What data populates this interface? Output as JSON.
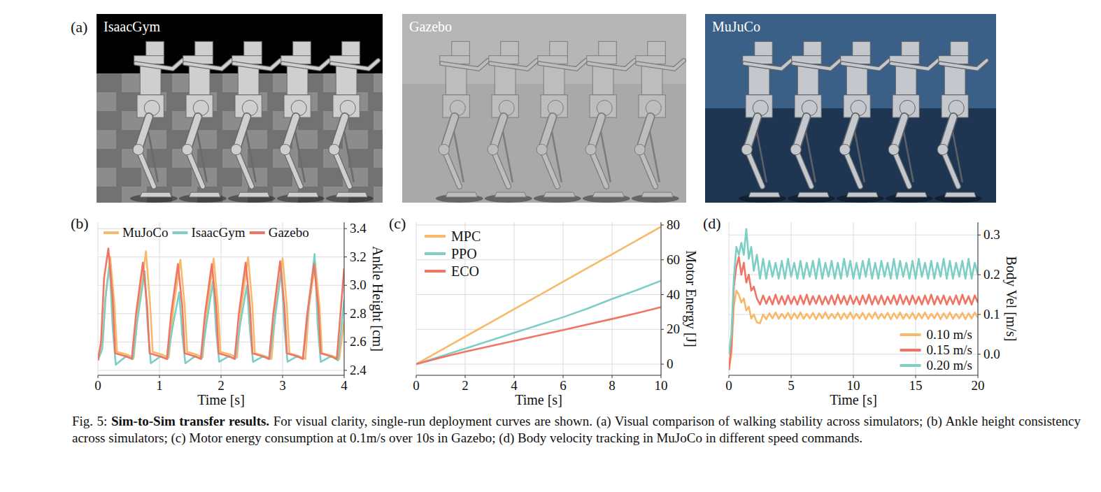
{
  "panel_a": {
    "panel_label": "(a)",
    "images": [
      {
        "label": "IsaacGym"
      },
      {
        "label": "Gazebo"
      },
      {
        "label": "MuJuCo"
      }
    ]
  },
  "chart_data": [
    {
      "type": "line",
      "panel_label": "(b)",
      "x_label": "Time [s]",
      "y_label": "Ankle Height [cm]",
      "xlim": [
        0,
        4
      ],
      "ylim": [
        2.365,
        3.445
      ],
      "xticks": [
        0,
        1,
        2,
        3,
        4
      ],
      "yticks": [
        2.4,
        2.6,
        2.8,
        {
          "value": 3,
          "label": "3.0"
        },
        3.2,
        3.4
      ],
      "grid": true,
      "legend": "top",
      "series": [
        {
          "name": "MuJoCo",
          "color": "#F7B96A",
          "x": [
            0,
            0.08,
            0.13,
            0.2,
            0.27,
            0.31,
            0.48,
            0.58,
            0.66,
            0.78,
            0.85,
            0.89,
            1.05,
            1.15,
            1.23,
            1.34,
            1.41,
            1.45,
            1.61,
            1.7,
            1.78,
            1.88,
            1.95,
            1.99,
            2.16,
            2.26,
            2.33,
            2.44,
            2.51,
            2.55,
            2.72,
            2.82,
            2.89,
            3.0,
            3.07,
            3.11,
            3.27,
            3.37,
            3.43,
            3.53,
            3.6,
            3.64,
            3.82,
            3.92,
            4.0
          ],
          "values": [
            2.5,
            2.6,
            2.95,
            3.2,
            2.85,
            2.53,
            2.51,
            2.49,
            2.85,
            3.24,
            2.85,
            2.53,
            2.51,
            2.49,
            2.85,
            3.18,
            2.85,
            2.53,
            2.51,
            2.49,
            2.85,
            3.19,
            2.85,
            2.53,
            2.51,
            2.49,
            2.85,
            3.2,
            2.85,
            2.52,
            2.5,
            2.48,
            2.85,
            3.19,
            2.85,
            2.52,
            2.5,
            2.48,
            2.85,
            3.16,
            2.85,
            2.52,
            2.5,
            2.48,
            2.75
          ]
        },
        {
          "name": "IsaacGym",
          "color": "#7DCFC6",
          "x": [
            0,
            0.07,
            0.12,
            0.19,
            0.24,
            0.29,
            0.46,
            0.57,
            0.64,
            0.76,
            0.81,
            0.86,
            1.02,
            1.13,
            1.21,
            1.32,
            1.37,
            1.42,
            1.58,
            1.68,
            1.76,
            1.87,
            1.92,
            1.97,
            2.13,
            2.23,
            2.31,
            2.42,
            2.47,
            2.52,
            2.69,
            2.79,
            2.87,
            2.98,
            3.03,
            3.08,
            3.24,
            3.33,
            3.41,
            3.52,
            3.57,
            3.62,
            3.79,
            3.9,
            4.0
          ],
          "values": [
            2.47,
            2.55,
            2.9,
            3.15,
            2.7,
            2.44,
            2.5,
            2.48,
            2.75,
            3.1,
            2.7,
            2.45,
            2.5,
            2.48,
            2.7,
            2.95,
            2.65,
            2.45,
            2.5,
            2.48,
            2.72,
            3.03,
            2.68,
            2.46,
            2.5,
            2.48,
            2.72,
            3.0,
            2.68,
            2.46,
            2.5,
            2.48,
            2.75,
            3.1,
            2.7,
            2.46,
            2.5,
            2.48,
            2.8,
            3.22,
            2.72,
            2.46,
            2.5,
            2.47,
            2.9
          ]
        },
        {
          "name": "Gazebo",
          "color": "#F07565",
          "x": [
            0,
            0.05,
            0.1,
            0.17,
            0.24,
            0.28,
            0.45,
            0.55,
            0.62,
            0.73,
            0.8,
            0.84,
            1.0,
            1.12,
            1.19,
            1.3,
            1.37,
            1.41,
            1.57,
            1.67,
            1.74,
            1.85,
            1.92,
            1.96,
            2.12,
            2.22,
            2.29,
            2.4,
            2.47,
            2.51,
            2.67,
            2.78,
            2.85,
            2.96,
            3.03,
            3.07,
            3.23,
            3.33,
            3.4,
            3.51,
            3.58,
            3.62,
            3.78,
            3.88,
            4.0
          ],
          "values": [
            2.47,
            2.6,
            3.05,
            3.26,
            2.9,
            2.52,
            2.5,
            2.48,
            2.8,
            3.16,
            2.85,
            2.52,
            2.5,
            2.48,
            2.8,
            3.15,
            2.85,
            2.52,
            2.5,
            2.48,
            2.8,
            3.15,
            2.85,
            2.52,
            2.5,
            2.48,
            2.8,
            3.16,
            2.85,
            2.52,
            2.5,
            2.48,
            2.8,
            3.17,
            2.85,
            2.52,
            2.5,
            2.48,
            2.8,
            3.15,
            2.85,
            2.52,
            2.5,
            2.48,
            3.12
          ]
        }
      ]
    },
    {
      "type": "line",
      "panel_label": "(c)",
      "x_label": "Time [s]",
      "y_label": "Motor Energy [J]",
      "xlim": [
        0,
        10
      ],
      "ylim": [
        -6.4,
        81.6
      ],
      "xticks": [
        0,
        2,
        4,
        6,
        8,
        10
      ],
      "yticks": [
        0,
        20,
        40,
        60,
        80
      ],
      "grid": true,
      "legend": "upper left",
      "x": [
        0,
        1,
        2,
        3,
        4,
        5,
        6,
        7,
        8,
        9,
        10
      ],
      "series": [
        {
          "name": "MPC",
          "color": "#F7B96A",
          "values": [
            0,
            7.9,
            15.8,
            23.7,
            31.6,
            39.5,
            47.4,
            55.3,
            63.2,
            71.1,
            79
          ]
        },
        {
          "name": "PPO",
          "color": "#7DCFC6",
          "values": [
            0,
            4.5,
            9,
            13.5,
            18,
            22.5,
            27,
            32,
            37.5,
            42.5,
            48
          ]
        },
        {
          "name": "ECO",
          "color": "#F07565",
          "values": [
            0,
            3.8,
            7.2,
            10.3,
            13.4,
            16.5,
            19.6,
            22.8,
            26,
            29.3,
            32.8
          ]
        }
      ]
    },
    {
      "type": "line",
      "panel_label": "(d)",
      "x_label": "Time [s]",
      "y_label": "Body Vel [m/s]",
      "xlim": [
        0,
        20
      ],
      "ylim": [
        -0.053,
        0.332
      ],
      "xticks": [
        0,
        5,
        10,
        15,
        20
      ],
      "yticks": [
        {
          "value": 0,
          "label": "0.0"
        },
        0.1,
        0.2,
        0.3
      ],
      "grid": true,
      "legend": "lower right",
      "x": [
        0,
        0.2,
        0.4,
        0.6,
        0.8,
        1.0,
        1.2,
        1.4,
        1.6,
        1.8,
        2.0,
        2.25,
        2.5,
        2.75,
        3,
        3.25,
        3.5,
        3.75,
        4,
        4.25,
        4.5,
        4.75,
        5,
        5.25,
        5.5,
        5.75,
        6,
        6.25,
        6.5,
        6.75,
        7,
        7.25,
        7.5,
        7.75,
        8,
        8.25,
        8.5,
        8.75,
        9,
        9.25,
        9.5,
        9.75,
        10,
        10.25,
        10.5,
        10.75,
        11,
        11.25,
        11.5,
        11.75,
        12,
        12.25,
        12.5,
        12.75,
        13,
        13.25,
        13.5,
        13.75,
        14,
        14.25,
        14.5,
        14.75,
        15,
        15.25,
        15.5,
        15.75,
        16,
        16.25,
        16.5,
        16.75,
        17,
        17.25,
        17.5,
        17.75,
        18,
        18.25,
        18.5,
        18.75,
        19,
        19.25,
        19.5,
        19.75,
        20
      ],
      "series": [
        {
          "name": "0.10 m/s",
          "color": "#F7B96A",
          "values": [
            -0.04,
            0.0,
            0.12,
            0.16,
            0.15,
            0.13,
            0.14,
            0.11,
            0.12,
            0.09,
            0.1,
            0.08,
            0.078,
            0.1,
            0.088,
            0.103,
            0.09,
            0.105,
            0.089,
            0.102,
            0.09,
            0.104,
            0.088,
            0.103,
            0.09,
            0.105,
            0.089,
            0.102,
            0.09,
            0.104,
            0.088,
            0.103,
            0.09,
            0.105,
            0.089,
            0.102,
            0.09,
            0.104,
            0.088,
            0.103,
            0.09,
            0.105,
            0.089,
            0.102,
            0.09,
            0.104,
            0.088,
            0.103,
            0.09,
            0.105,
            0.089,
            0.102,
            0.09,
            0.104,
            0.088,
            0.103,
            0.09,
            0.105,
            0.089,
            0.102,
            0.09,
            0.104,
            0.088,
            0.103,
            0.09,
            0.105,
            0.089,
            0.102,
            0.09,
            0.104,
            0.088,
            0.103,
            0.09,
            0.105,
            0.089,
            0.102,
            0.09,
            0.104,
            0.088,
            0.103,
            0.09,
            0.105,
            0.092
          ]
        },
        {
          "name": "0.15 m/s",
          "color": "#F07565",
          "values": [
            -0.04,
            0.02,
            0.17,
            0.22,
            0.245,
            0.2,
            0.23,
            0.18,
            0.2,
            0.16,
            0.17,
            0.14,
            0.125,
            0.148,
            0.127,
            0.145,
            0.125,
            0.15,
            0.126,
            0.146,
            0.125,
            0.148,
            0.127,
            0.145,
            0.125,
            0.148,
            0.126,
            0.15,
            0.125,
            0.146,
            0.127,
            0.148,
            0.125,
            0.145,
            0.126,
            0.148,
            0.125,
            0.15,
            0.127,
            0.146,
            0.125,
            0.148,
            0.126,
            0.145,
            0.125,
            0.148,
            0.127,
            0.15,
            0.125,
            0.146,
            0.126,
            0.148,
            0.125,
            0.145,
            0.127,
            0.148,
            0.125,
            0.15,
            0.126,
            0.146,
            0.125,
            0.148,
            0.127,
            0.145,
            0.125,
            0.148,
            0.126,
            0.15,
            0.125,
            0.146,
            0.127,
            0.148,
            0.125,
            0.145,
            0.126,
            0.148,
            0.125,
            0.15,
            0.127,
            0.146,
            0.125,
            0.148,
            0.13
          ]
        },
        {
          "name": "0.20 m/s",
          "color": "#7DCFC6",
          "values": [
            0.0,
            0.05,
            0.19,
            0.27,
            0.25,
            0.28,
            0.25,
            0.315,
            0.24,
            0.27,
            0.21,
            0.25,
            0.19,
            0.24,
            0.19,
            0.235,
            0.195,
            0.23,
            0.19,
            0.235,
            0.19,
            0.24,
            0.195,
            0.23,
            0.19,
            0.235,
            0.19,
            0.23,
            0.195,
            0.235,
            0.19,
            0.24,
            0.19,
            0.23,
            0.195,
            0.235,
            0.19,
            0.23,
            0.19,
            0.24,
            0.195,
            0.235,
            0.19,
            0.23,
            0.19,
            0.235,
            0.195,
            0.24,
            0.19,
            0.23,
            0.19,
            0.235,
            0.195,
            0.23,
            0.19,
            0.24,
            0.19,
            0.235,
            0.195,
            0.23,
            0.19,
            0.235,
            0.19,
            0.24,
            0.195,
            0.23,
            0.19,
            0.235,
            0.19,
            0.23,
            0.195,
            0.24,
            0.19,
            0.235,
            0.19,
            0.23,
            0.195,
            0.235,
            0.19,
            0.24,
            0.19,
            0.23,
            0.2
          ]
        }
      ]
    }
  ],
  "caption": {
    "label": "Fig. 5:",
    "title": "Sim-to-Sim transfer results.",
    "text": "For visual clarity, single-run deployment curves are shown. (a) Visual comparison of walking stability across simulators; (b) Ankle height consistency across simulators; (c) Motor energy consumption at 0.1m/s over 10s in Gazebo; (d) Body velocity tracking in MuJoCo in different speed commands."
  }
}
